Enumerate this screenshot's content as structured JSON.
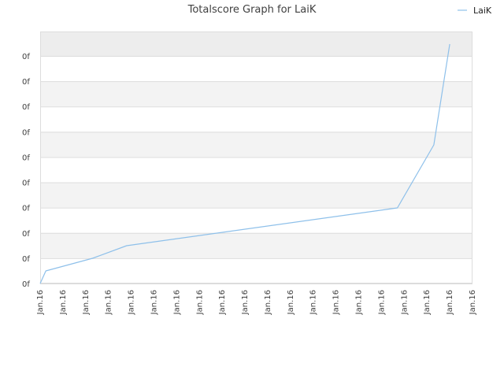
{
  "chart_data": {
    "type": "line",
    "title": "Totalscore Graph for LaiK",
    "xlabel": "",
    "ylabel": "",
    "legend": {
      "position": "top-right",
      "entries": [
        "LaiK"
      ]
    },
    "grid": true,
    "x_tick_labels": [
      "Jan.16",
      "Jan.16",
      "Jan.16",
      "Jan.16",
      "Jan.16",
      "Jan.16",
      "Jan.16",
      "Jan.16",
      "Jan.16",
      "Jan.16",
      "Jan.16",
      "Jan.16",
      "Jan.16",
      "Jan.16",
      "Jan.16",
      "Jan.16",
      "Jan.16",
      "Jan.16",
      "Jan.16",
      "Jan.16"
    ],
    "y_tick_labels": [
      "0f",
      "0f",
      "0f",
      "0f",
      "0f",
      "0f",
      "0f",
      "0f",
      "0f",
      "0f"
    ],
    "xlim": [
      0,
      19
    ],
    "ylim": [
      0,
      10
    ],
    "series": [
      {
        "name": "LaiK",
        "color": "#8ec0ea",
        "x": [
          0,
          0.25,
          2.3,
          3.8,
          15.7,
          17.3,
          18
        ],
        "y": [
          0,
          0.5,
          1.0,
          1.5,
          3.0,
          5.5,
          9.5
        ]
      }
    ],
    "band_colors": [
      "#ededed",
      "#ffffff",
      "#f3f3f3"
    ],
    "gridline_color": "#dcdcdc"
  }
}
